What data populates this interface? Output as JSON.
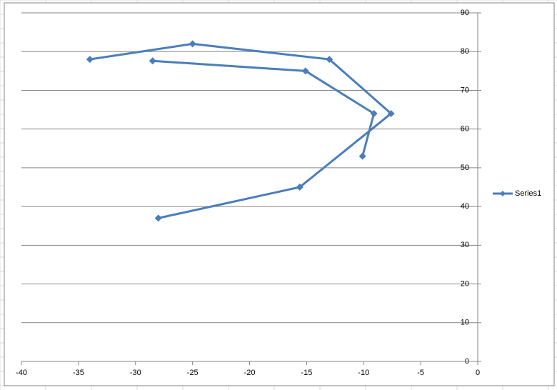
{
  "chart_data": {
    "type": "scatter-line",
    "series": [
      {
        "name": "Series1",
        "color": "#4a7ebb",
        "x": [
          -28,
          -15.6,
          -7.6,
          -13,
          -25,
          -34,
          null,
          -28.5,
          -15.1,
          -9.1,
          -10.1
        ],
        "values": [
          37,
          45,
          64,
          78,
          82,
          78,
          null,
          77.6,
          75,
          64,
          53
        ]
      }
    ],
    "xlim": [
      -40,
      0
    ],
    "xticks": [
      -40,
      -35,
      -30,
      -25,
      -20,
      -15,
      -10,
      -5,
      0
    ],
    "ylim": [
      0,
      90
    ],
    "yticks": [
      0,
      10,
      20,
      30,
      40,
      50,
      60,
      70,
      80,
      90
    ],
    "grid": true,
    "legend": "right"
  }
}
